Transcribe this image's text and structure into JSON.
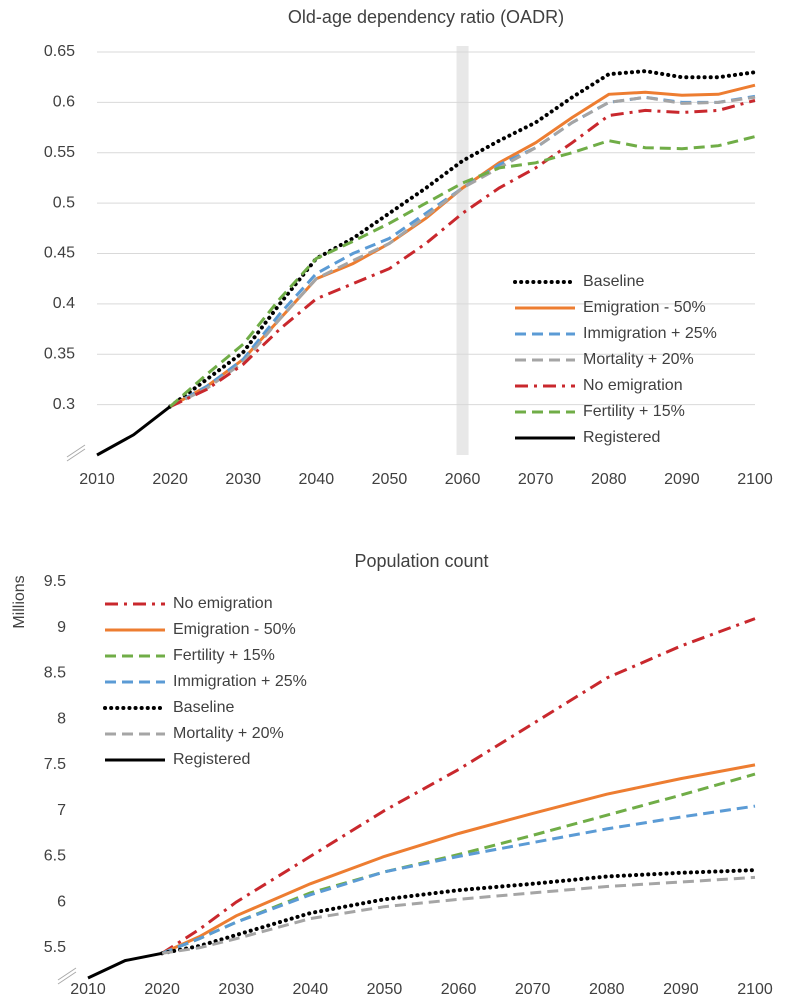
{
  "chart_data": [
    {
      "type": "line",
      "title": "Old-age dependency ratio (OADR)",
      "x": [
        2010,
        2015,
        2020,
        2025,
        2030,
        2035,
        2040,
        2045,
        2050,
        2055,
        2060,
        2065,
        2070,
        2075,
        2080,
        2085,
        2090,
        2095,
        2100
      ],
      "xlim": [
        2010,
        2100
      ],
      "xticks": [
        2010,
        2020,
        2030,
        2040,
        2050,
        2060,
        2070,
        2080,
        2090,
        2100
      ],
      "ylim": [
        0.25,
        0.65
      ],
      "yticks": [
        0.3,
        0.35,
        0.4,
        0.45,
        0.5,
        0.55,
        0.6,
        0.65
      ],
      "grid": true,
      "legend": "bottom-right",
      "highlight_x": 2060,
      "series": [
        {
          "name": "Baseline",
          "color": "#000000",
          "dash": "dot",
          "values": [
            null,
            null,
            0.298,
            0.325,
            0.352,
            0.4,
            0.445,
            0.465,
            0.49,
            0.515,
            0.542,
            0.562,
            0.58,
            0.605,
            0.628,
            0.631,
            0.625,
            0.625,
            0.63
          ]
        },
        {
          "name": "Emigration - 50%",
          "color": "#ED7D31",
          "dash": "solid",
          "values": [
            null,
            null,
            0.298,
            0.318,
            0.345,
            0.385,
            0.425,
            0.44,
            0.46,
            0.485,
            0.515,
            0.54,
            0.56,
            0.585,
            0.608,
            0.61,
            0.607,
            0.608,
            0.617
          ]
        },
        {
          "name": "Immigration + 25%",
          "color": "#5B9BD5",
          "dash": "dash",
          "values": [
            null,
            null,
            0.298,
            0.318,
            0.345,
            0.39,
            0.43,
            0.45,
            0.465,
            0.49,
            0.515,
            0.538,
            0.555,
            0.58,
            0.6,
            0.605,
            0.6,
            0.6,
            0.606
          ]
        },
        {
          "name": "Mortality + 20%",
          "color": "#A5A5A5",
          "dash": "dash",
          "values": [
            null,
            null,
            0.298,
            0.316,
            0.342,
            0.385,
            0.425,
            0.443,
            0.46,
            0.487,
            0.515,
            0.535,
            0.555,
            0.58,
            0.6,
            0.605,
            0.599,
            0.6,
            0.605
          ]
        },
        {
          "name": "No emigration",
          "color": "#C9282D",
          "dash": "dashdot",
          "values": [
            null,
            null,
            0.298,
            0.315,
            0.34,
            0.375,
            0.405,
            0.42,
            0.435,
            0.46,
            0.49,
            0.515,
            0.535,
            0.56,
            0.587,
            0.592,
            0.59,
            0.592,
            0.602
          ]
        },
        {
          "name": "Fertility + 15%",
          "color": "#70AD47",
          "dash": "dash",
          "values": [
            null,
            null,
            0.298,
            0.33,
            0.36,
            0.405,
            0.445,
            0.462,
            0.48,
            0.5,
            0.52,
            0.535,
            0.54,
            0.55,
            0.562,
            0.555,
            0.554,
            0.557,
            0.566
          ]
        },
        {
          "name": "Registered",
          "color": "#000000",
          "dash": "solid",
          "values": [
            0.25,
            0.27,
            0.298,
            null,
            null,
            null,
            null,
            null,
            null,
            null,
            null,
            null,
            null,
            null,
            null,
            null,
            null,
            null,
            null
          ]
        }
      ]
    },
    {
      "type": "line",
      "title": "Population count",
      "y_label": "Millions",
      "x": [
        2010,
        2015,
        2020,
        2025,
        2030,
        2040,
        2050,
        2060,
        2070,
        2080,
        2090,
        2100
      ],
      "xlim": [
        2010,
        2100
      ],
      "xticks": [
        2010,
        2020,
        2030,
        2040,
        2050,
        2060,
        2070,
        2080,
        2090,
        2100
      ],
      "ylim": [
        5.17,
        9.5
      ],
      "yticks": [
        5.5,
        6,
        6.5,
        7,
        7.5,
        8,
        8.5,
        9,
        9.5
      ],
      "grid": false,
      "legend": "top-left",
      "series": [
        {
          "name": "No emigration",
          "color": "#C9282D",
          "dash": "dashdot",
          "values": [
            null,
            null,
            5.44,
            5.7,
            6.0,
            6.5,
            7.0,
            7.45,
            7.95,
            8.45,
            8.8,
            9.1
          ]
        },
        {
          "name": "Emigration - 50%",
          "color": "#ED7D31",
          "dash": "solid",
          "values": [
            null,
            null,
            5.44,
            5.62,
            5.85,
            6.2,
            6.5,
            6.75,
            6.97,
            7.18,
            7.35,
            7.5
          ]
        },
        {
          "name": "Fertility + 15%",
          "color": "#70AD47",
          "dash": "dash",
          "values": [
            null,
            null,
            5.44,
            5.6,
            5.78,
            6.1,
            6.33,
            6.52,
            6.73,
            6.95,
            7.17,
            7.4
          ]
        },
        {
          "name": "Immigration + 25%",
          "color": "#5B9BD5",
          "dash": "dash",
          "values": [
            null,
            null,
            5.44,
            5.6,
            5.78,
            6.08,
            6.33,
            6.5,
            6.65,
            6.8,
            6.93,
            7.05
          ]
        },
        {
          "name": "Baseline",
          "color": "#000000",
          "dash": "dot",
          "values": [
            null,
            null,
            5.44,
            5.52,
            5.64,
            5.88,
            6.03,
            6.13,
            6.2,
            6.28,
            6.32,
            6.35
          ]
        },
        {
          "name": "Mortality + 20%",
          "color": "#A5A5A5",
          "dash": "dash",
          "values": [
            null,
            null,
            5.44,
            5.5,
            5.6,
            5.82,
            5.95,
            6.03,
            6.1,
            6.17,
            6.22,
            6.27
          ]
        },
        {
          "name": "Registered",
          "color": "#000000",
          "dash": "solid",
          "values": [
            5.17,
            5.36,
            5.44,
            null,
            null,
            null,
            null,
            null,
            null,
            null,
            null,
            null
          ]
        }
      ]
    }
  ]
}
